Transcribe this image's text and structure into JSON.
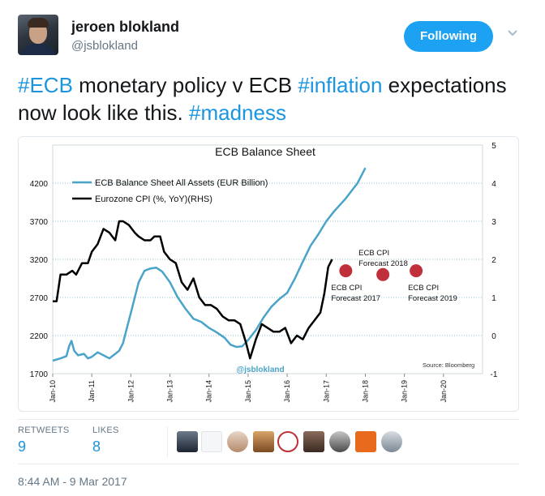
{
  "author": {
    "name": "jeroen blokland",
    "handle": "@jsblokland"
  },
  "follow_button": {
    "label": "Following"
  },
  "tweet": {
    "segments": [
      {
        "text": "#ECB",
        "hashtag": true
      },
      {
        "text": " monetary policy v ECB ",
        "hashtag": false
      },
      {
        "text": "#inflation",
        "hashtag": true
      },
      {
        "text": " expectations now look like this. ",
        "hashtag": false
      },
      {
        "text": "#madness",
        "hashtag": true
      }
    ]
  },
  "stats": {
    "retweets_label": "RETWEETS",
    "retweets": "9",
    "likes_label": "LIKES",
    "likes": "8"
  },
  "timestamp": "8:44 AM - 9 Mar 2017",
  "icons": {
    "more": "chevron-down-icon"
  },
  "colors": {
    "accent": "#1da1f2",
    "hashtag": "#1b95e0",
    "series_balance": "#4aa3c8",
    "series_cpi": "#000000",
    "forecast": "#c0303a"
  },
  "chart_data": {
    "type": "line",
    "title": "ECB Balance Sheet",
    "source": "Source: Bloomberg",
    "watermark": "@jsblokland",
    "x_ticks": [
      "Jan-10",
      "Jan-11",
      "Jan-12",
      "Jan-13",
      "Jan-14",
      "Jan-15",
      "Jan-16",
      "Jan-17",
      "Jan-18",
      "Jan-19",
      "Jan-20"
    ],
    "x_range": [
      2010.0,
      2021.0
    ],
    "ylim_left": [
      1700,
      4700
    ],
    "ylim_right": [
      -1,
      5
    ],
    "y_ticks_left": [
      "4200",
      "3700",
      "3200",
      "2700",
      "2200",
      "1700"
    ],
    "y_ticks_right": [
      "5",
      "4",
      "3",
      "2",
      "1",
      "0",
      "-1"
    ],
    "legend_position": "top-left",
    "series": [
      {
        "name": "ECB Balance Sheet All Assets (EUR Billion)",
        "axis": "left",
        "points": [
          [
            2010.0,
            1870
          ],
          [
            2010.2,
            1900
          ],
          [
            2010.35,
            1930
          ],
          [
            2010.42,
            2060
          ],
          [
            2010.48,
            2130
          ],
          [
            2010.55,
            2000
          ],
          [
            2010.65,
            1940
          ],
          [
            2010.8,
            1960
          ],
          [
            2010.9,
            1900
          ],
          [
            2011.0,
            1920
          ],
          [
            2011.15,
            1980
          ],
          [
            2011.3,
            1940
          ],
          [
            2011.45,
            1900
          ],
          [
            2011.6,
            1960
          ],
          [
            2011.7,
            2000
          ],
          [
            2011.8,
            2100
          ],
          [
            2011.9,
            2300
          ],
          [
            2012.0,
            2500
          ],
          [
            2012.1,
            2700
          ],
          [
            2012.2,
            2900
          ],
          [
            2012.35,
            3050
          ],
          [
            2012.5,
            3080
          ],
          [
            2012.65,
            3090
          ],
          [
            2012.8,
            3040
          ],
          [
            2013.0,
            2900
          ],
          [
            2013.2,
            2700
          ],
          [
            2013.4,
            2550
          ],
          [
            2013.6,
            2420
          ],
          [
            2013.8,
            2380
          ],
          [
            2014.0,
            2300
          ],
          [
            2014.2,
            2240
          ],
          [
            2014.4,
            2170
          ],
          [
            2014.55,
            2080
          ],
          [
            2014.7,
            2050
          ],
          [
            2014.85,
            2060
          ],
          [
            2015.0,
            2140
          ],
          [
            2015.2,
            2270
          ],
          [
            2015.4,
            2440
          ],
          [
            2015.6,
            2580
          ],
          [
            2015.8,
            2680
          ],
          [
            2016.0,
            2760
          ],
          [
            2016.2,
            2950
          ],
          [
            2016.4,
            3170
          ],
          [
            2016.6,
            3380
          ],
          [
            2016.8,
            3530
          ],
          [
            2017.0,
            3700
          ],
          [
            2017.2,
            3830
          ],
          [
            2017.5,
            4000
          ],
          [
            2017.8,
            4200
          ],
          [
            2018.0,
            4400
          ]
        ]
      },
      {
        "name": "Eurozone CPI (%, YoY)(RHS)",
        "axis": "right",
        "points": [
          [
            2010.0,
            0.9
          ],
          [
            2010.1,
            0.9
          ],
          [
            2010.2,
            1.6
          ],
          [
            2010.35,
            1.6
          ],
          [
            2010.5,
            1.7
          ],
          [
            2010.6,
            1.6
          ],
          [
            2010.75,
            1.9
          ],
          [
            2010.9,
            1.9
          ],
          [
            2011.0,
            2.2
          ],
          [
            2011.15,
            2.4
          ],
          [
            2011.3,
            2.8
          ],
          [
            2011.45,
            2.7
          ],
          [
            2011.6,
            2.5
          ],
          [
            2011.7,
            3.0
          ],
          [
            2011.8,
            3.0
          ],
          [
            2011.95,
            2.9
          ],
          [
            2012.1,
            2.7
          ],
          [
            2012.2,
            2.6
          ],
          [
            2012.35,
            2.5
          ],
          [
            2012.5,
            2.5
          ],
          [
            2012.6,
            2.6
          ],
          [
            2012.75,
            2.6
          ],
          [
            2012.85,
            2.2
          ],
          [
            2013.0,
            2.0
          ],
          [
            2013.15,
            1.9
          ],
          [
            2013.3,
            1.4
          ],
          [
            2013.45,
            1.2
          ],
          [
            2013.6,
            1.5
          ],
          [
            2013.75,
            1.0
          ],
          [
            2013.9,
            0.8
          ],
          [
            2014.05,
            0.8
          ],
          [
            2014.2,
            0.7
          ],
          [
            2014.35,
            0.5
          ],
          [
            2014.5,
            0.4
          ],
          [
            2014.65,
            0.4
          ],
          [
            2014.8,
            0.3
          ],
          [
            2014.95,
            -0.2
          ],
          [
            2015.05,
            -0.6
          ],
          [
            2015.2,
            -0.1
          ],
          [
            2015.35,
            0.3
          ],
          [
            2015.5,
            0.2
          ],
          [
            2015.65,
            0.1
          ],
          [
            2015.8,
            0.1
          ],
          [
            2015.95,
            0.2
          ],
          [
            2016.1,
            -0.2
          ],
          [
            2016.25,
            0.0
          ],
          [
            2016.4,
            -0.1
          ],
          [
            2016.55,
            0.2
          ],
          [
            2016.7,
            0.4
          ],
          [
            2016.85,
            0.6
          ],
          [
            2016.95,
            1.1
          ],
          [
            2017.05,
            1.8
          ],
          [
            2017.15,
            2.0
          ]
        ]
      }
    ],
    "forecasts": [
      {
        "label_lines": [
          "ECB CPI",
          "Forecast 2017"
        ],
        "x": 2017.5,
        "y": 1.7
      },
      {
        "label_lines": [
          "ECB CPI",
          "Forecast 2018"
        ],
        "x": 2018.45,
        "y": 1.6
      },
      {
        "label_lines": [
          "ECB CPI",
          "Forecast 2019"
        ],
        "x": 2019.3,
        "y": 1.7
      }
    ]
  }
}
